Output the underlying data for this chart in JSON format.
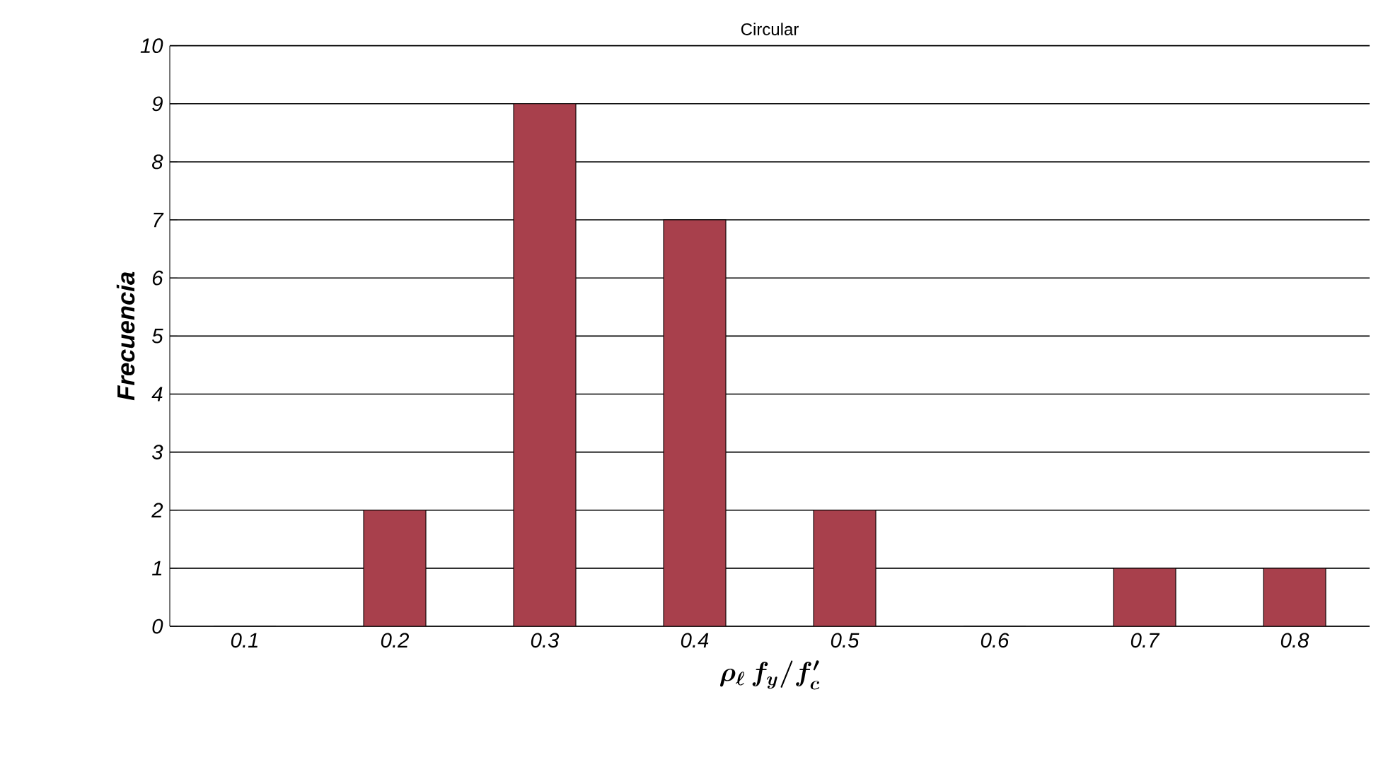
{
  "chart_data": {
    "type": "bar",
    "title": "Circular",
    "xlabel": "\\boldsymbol{\\rho_{\\ell}\\, f_{y} / f'_{c}}",
    "ylabel": "Frecuencia",
    "categories": [
      "0.1",
      "0.2",
      "0.3",
      "0.4",
      "0.5",
      "0.6",
      "0.7",
      "0.8"
    ],
    "values": [
      0,
      2,
      9,
      7,
      2,
      0,
      1,
      1
    ],
    "color": "#a8404c",
    "ylim": [
      0,
      10
    ],
    "yticks": [
      0,
      1,
      2,
      3,
      4,
      5,
      6,
      7,
      8,
      9,
      10
    ],
    "grid": "y"
  }
}
